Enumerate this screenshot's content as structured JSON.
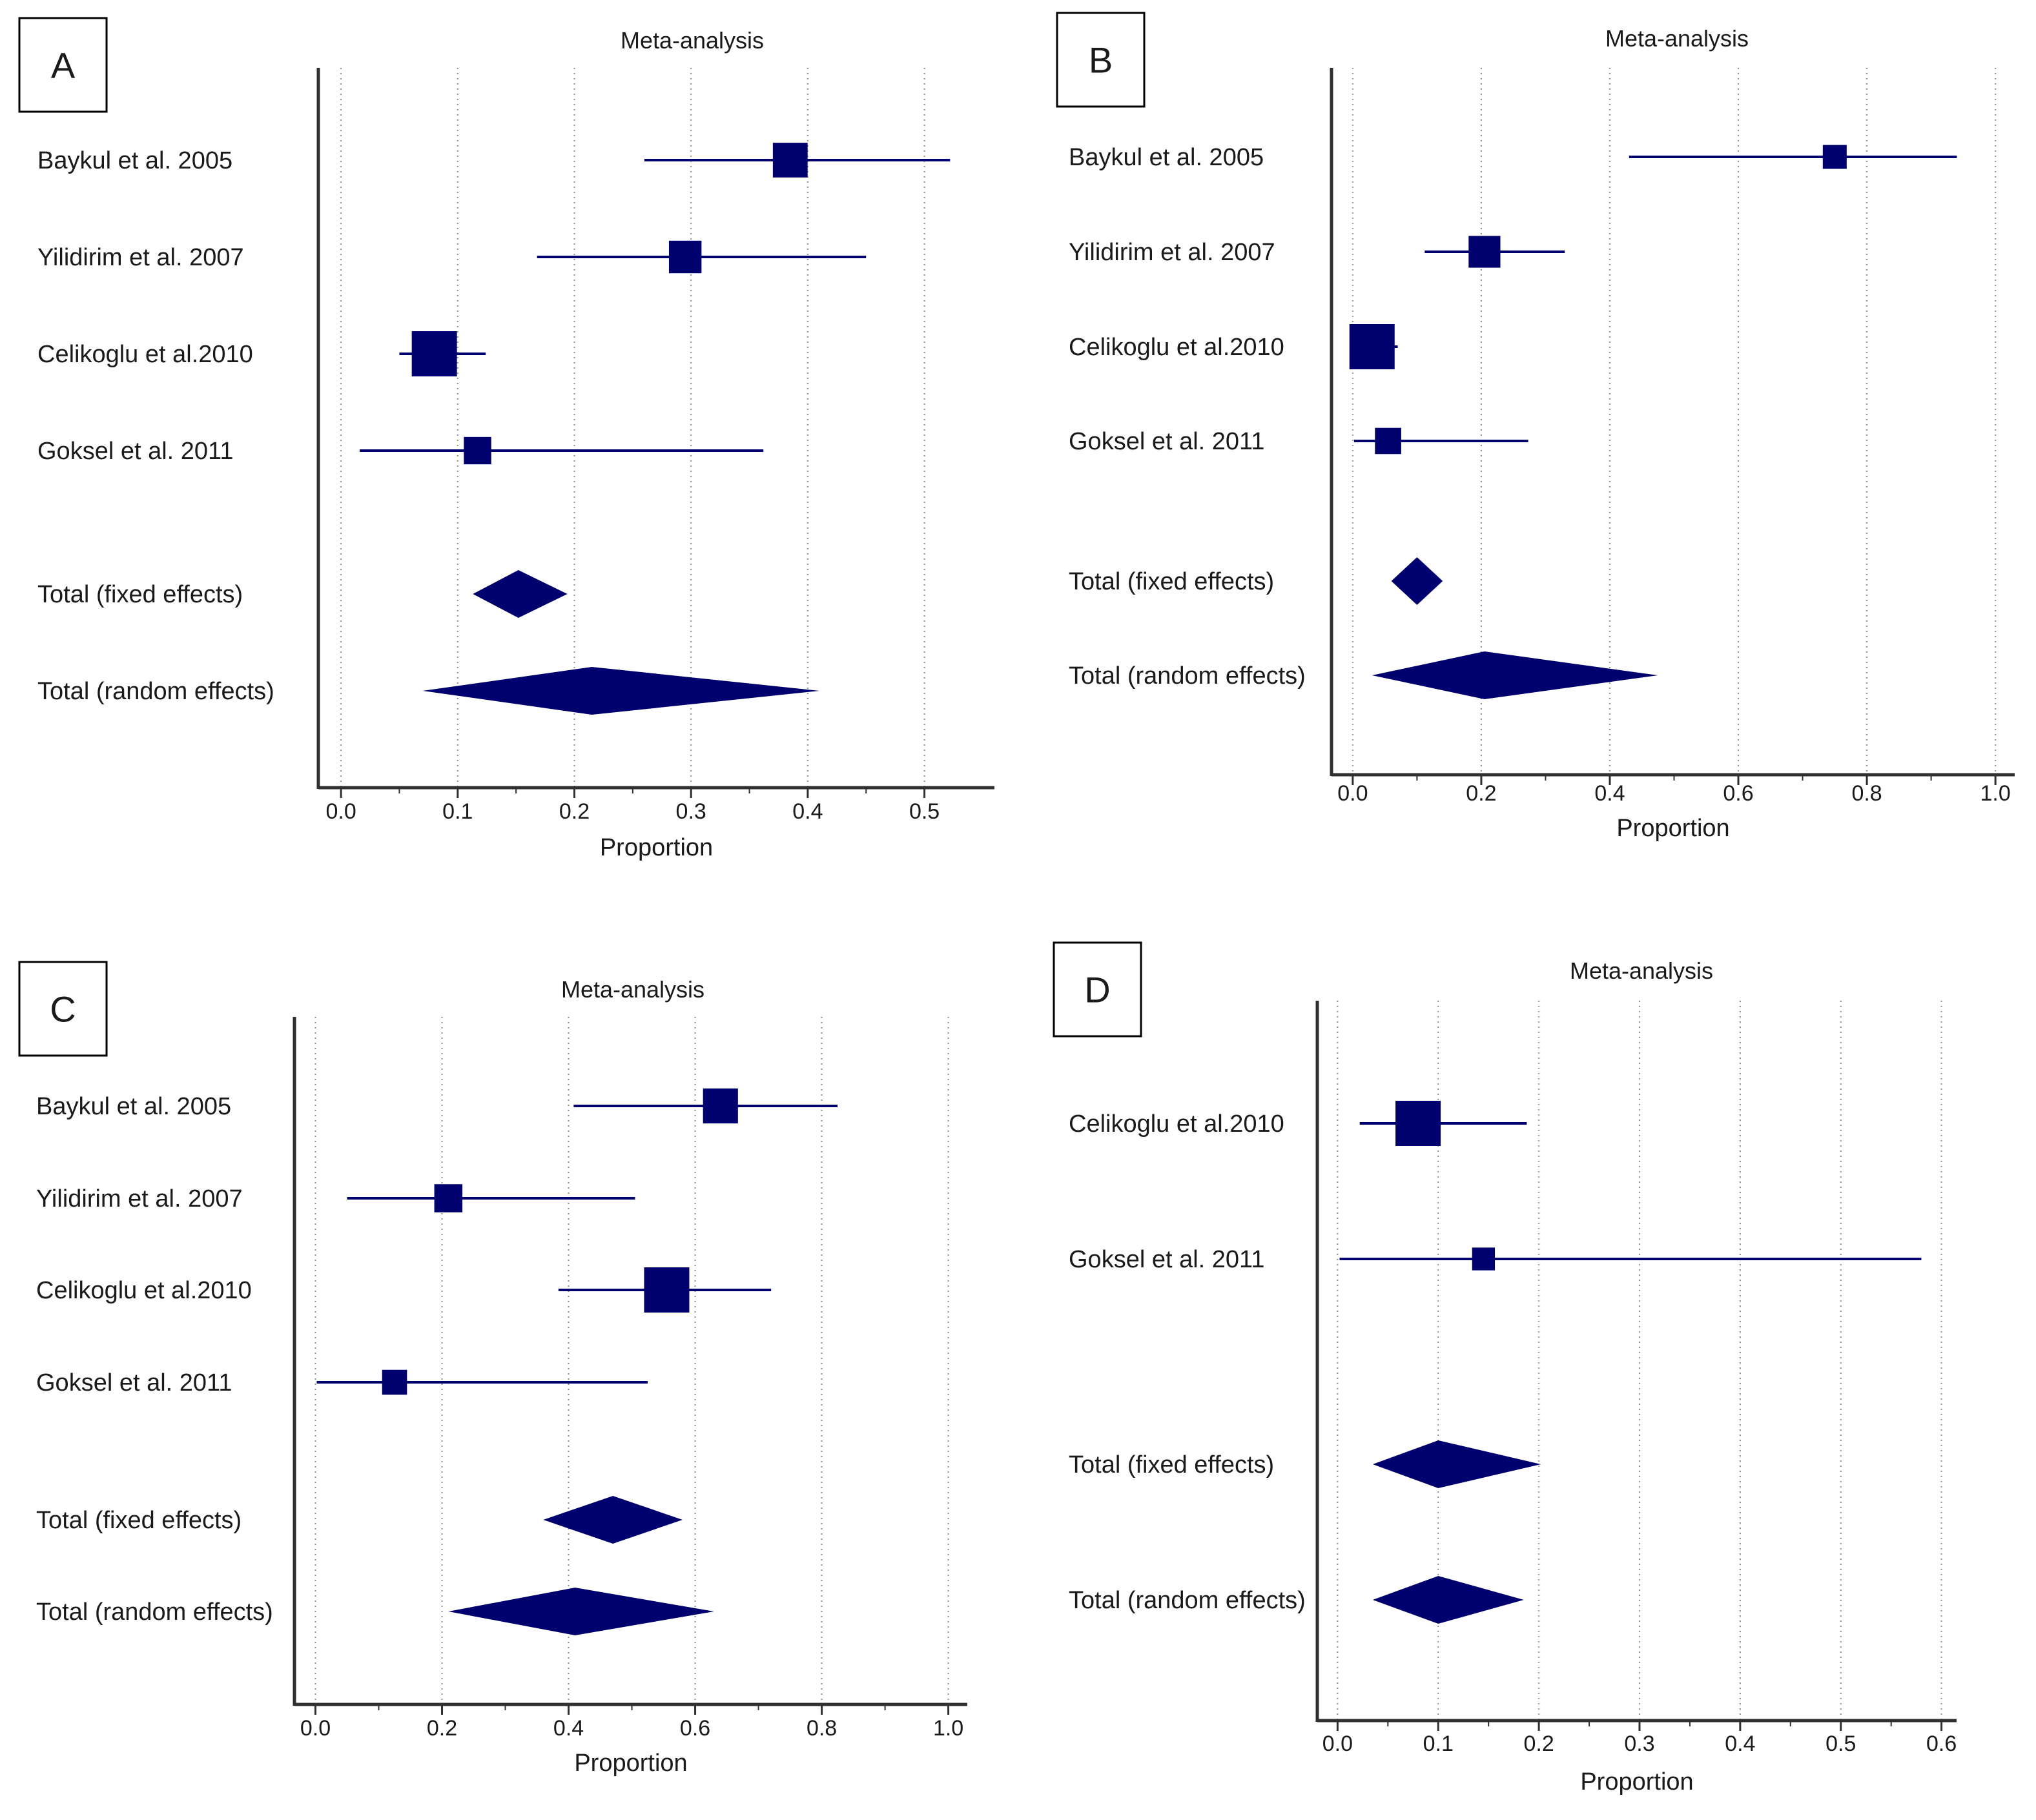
{
  "colors": {
    "marker": "#00006e",
    "axis": "#303030",
    "grid": "#8c8c8c",
    "text": "#1a1a1a"
  },
  "chart_data": [
    {
      "panel": "A",
      "type": "forest",
      "title": "Meta-analysis",
      "xlabel": "Proportion",
      "xlim": [
        -0.015,
        0.56
      ],
      "xticks": [
        0.0,
        0.1,
        0.2,
        0.3,
        0.4,
        0.5
      ],
      "xtick_labels": [
        "0.0",
        "0.1",
        "0.2",
        "0.3",
        "0.4",
        "0.5"
      ],
      "studies": [
        {
          "label": "Baykul et al. 2005",
          "estimate": 0.385,
          "lower": 0.26,
          "upper": 0.522,
          "weight": 0.42
        },
        {
          "label": "Yilidirim et al. 2007",
          "estimate": 0.295,
          "lower": 0.168,
          "upper": 0.45,
          "weight": 0.33
        },
        {
          "label": "Celikoglu et al.2010",
          "estimate": 0.08,
          "lower": 0.05,
          "upper": 0.124,
          "weight": 1.0
        },
        {
          "label": "Goksel et al. 2011",
          "estimate": 0.117,
          "lower": 0.016,
          "upper": 0.362,
          "weight": 0.16
        }
      ],
      "totals": [
        {
          "label": "Total (fixed effects)",
          "estimate": 0.152,
          "lower": 0.113,
          "upper": 0.194
        },
        {
          "label": "Total (random effects)",
          "estimate": 0.215,
          "lower": 0.07,
          "upper": 0.41
        }
      ]
    },
    {
      "panel": "B",
      "type": "forest",
      "title": "Meta-analysis",
      "xlabel": "Proportion",
      "xlim": [
        -0.025,
        1.03
      ],
      "xticks": [
        0.0,
        0.2,
        0.4,
        0.6,
        0.8,
        1.0
      ],
      "xtick_labels": [
        "0.0",
        "0.2",
        "0.4",
        "0.6",
        "0.8",
        "1.0"
      ],
      "studies": [
        {
          "label": "Baykul et al. 2005",
          "estimate": 0.75,
          "lower": 0.43,
          "upper": 0.94,
          "weight": 0.08
        },
        {
          "label": "Yilidirim et al. 2007",
          "estimate": 0.205,
          "lower": 0.112,
          "upper": 0.33,
          "weight": 0.3
        },
        {
          "label": "Celikoglu et al.2010",
          "estimate": 0.03,
          "lower": 0.0,
          "upper": 0.07,
          "weight": 1.0
        },
        {
          "label": "Goksel et al. 2011",
          "estimate": 0.055,
          "lower": 0.002,
          "upper": 0.273,
          "weight": 0.13
        }
      ],
      "totals": [
        {
          "label": "Total (fixed effects)",
          "estimate": 0.1,
          "lower": 0.06,
          "upper": 0.14
        },
        {
          "label": "Total (random effects)",
          "estimate": 0.205,
          "lower": 0.03,
          "upper": 0.475
        }
      ]
    },
    {
      "panel": "C",
      "type": "forest",
      "title": "Meta-analysis",
      "xlabel": "Proportion",
      "xlim": [
        -0.025,
        1.03
      ],
      "xticks": [
        0.0,
        0.2,
        0.4,
        0.6,
        0.8,
        1.0
      ],
      "xtick_labels": [
        "0.0",
        "0.2",
        "0.4",
        "0.6",
        "0.8",
        "1.0"
      ],
      "studies": [
        {
          "label": "Baykul et al. 2005",
          "estimate": 0.64,
          "lower": 0.408,
          "upper": 0.825,
          "weight": 0.43
        },
        {
          "label": "Yilidirim et al. 2007",
          "estimate": 0.21,
          "lower": 0.05,
          "upper": 0.505,
          "weight": 0.18
        },
        {
          "label": "Celikoglu et al.2010",
          "estimate": 0.555,
          "lower": 0.384,
          "upper": 0.72,
          "weight": 1.0
        },
        {
          "label": "Goksel et al. 2011",
          "estimate": 0.125,
          "lower": 0.002,
          "upper": 0.525,
          "weight": 0.1
        }
      ],
      "totals": [
        {
          "label": "Total (fixed effects)",
          "estimate": 0.47,
          "lower": 0.36,
          "upper": 0.58
        },
        {
          "label": "Total (random effects)",
          "estimate": 0.41,
          "lower": 0.21,
          "upper": 0.63
        }
      ]
    },
    {
      "panel": "D",
      "type": "forest",
      "title": "Meta-analysis",
      "xlabel": "Proportion",
      "xlim": [
        -0.015,
        0.615
      ],
      "xticks": [
        0.0,
        0.1,
        0.2,
        0.3,
        0.4,
        0.5,
        0.6
      ],
      "xtick_labels": [
        "0.0",
        "0.1",
        "0.2",
        "0.3",
        "0.4",
        "0.5",
        "0.6"
      ],
      "studies": [
        {
          "label": "Celikoglu et al.2010",
          "estimate": 0.08,
          "lower": 0.022,
          "upper": 0.188,
          "weight": 1.0
        },
        {
          "label": "Goksel et al. 2011",
          "estimate": 0.145,
          "lower": 0.002,
          "upper": 0.58,
          "weight": 0.06
        }
      ],
      "totals": [
        {
          "label": "Total (fixed effects)",
          "estimate": 0.1,
          "lower": 0.035,
          "upper": 0.202
        },
        {
          "label": "Total (random effects)",
          "estimate": 0.1,
          "lower": 0.035,
          "upper": 0.185
        }
      ]
    }
  ]
}
